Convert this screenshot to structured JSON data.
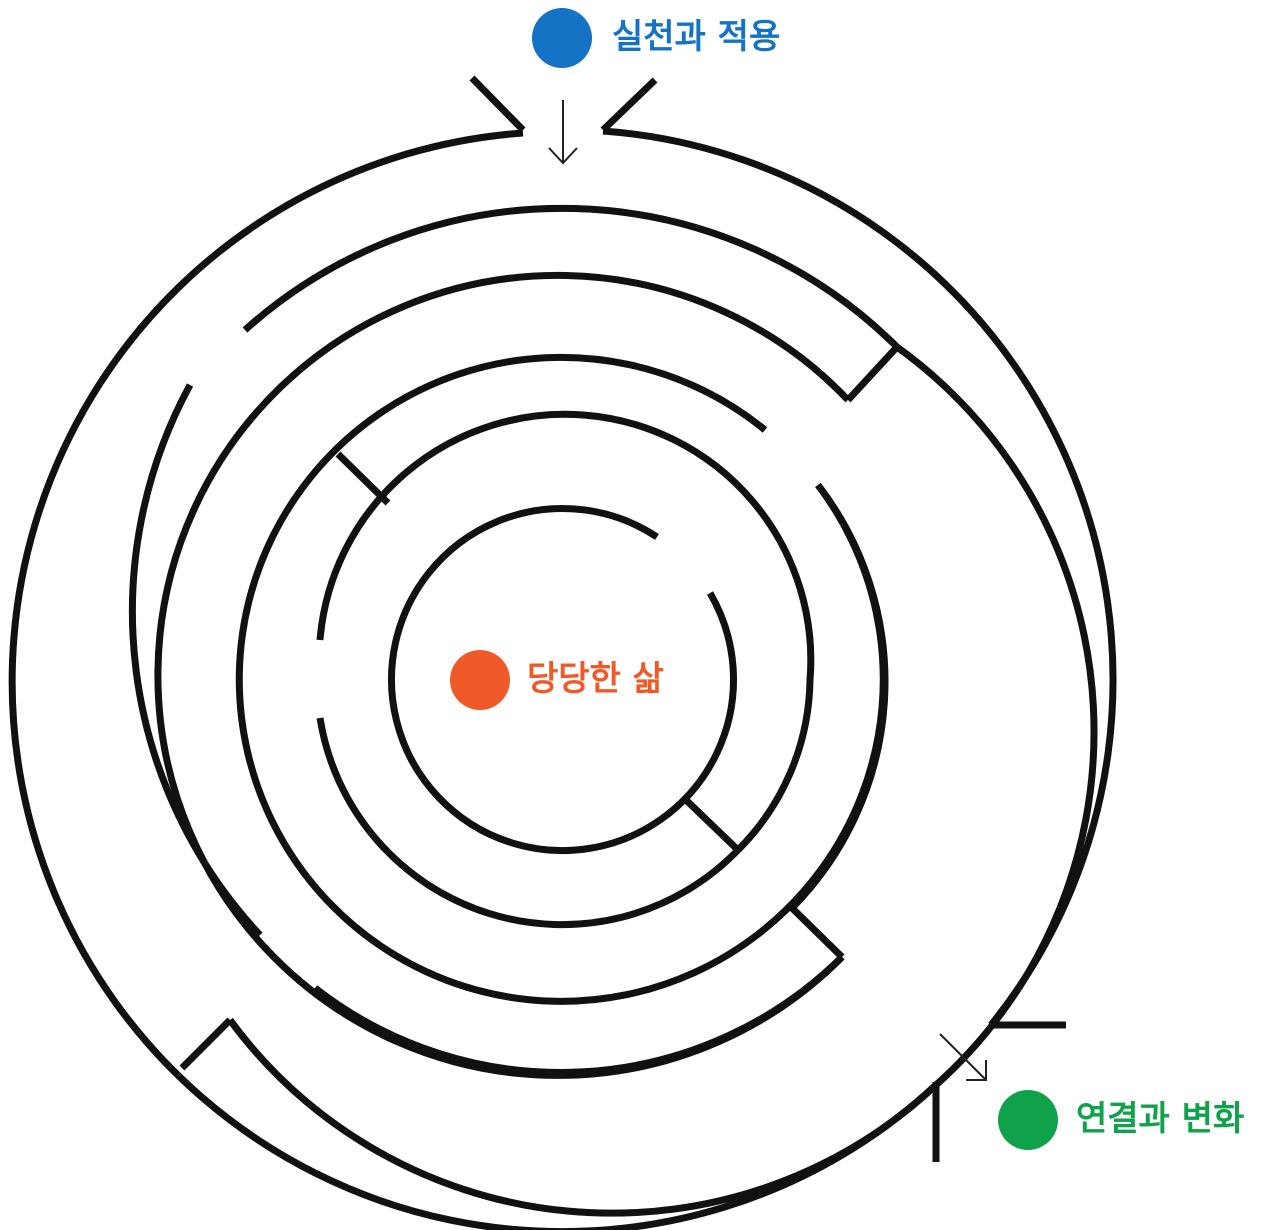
{
  "colors": {
    "entrance": "#1473c4",
    "center": "#f05a28",
    "exit": "#10a24a",
    "wall": "#111111"
  },
  "labels": {
    "entrance": "실천과 적용",
    "center": "당당한 삶",
    "exit": "연결과 변화"
  }
}
